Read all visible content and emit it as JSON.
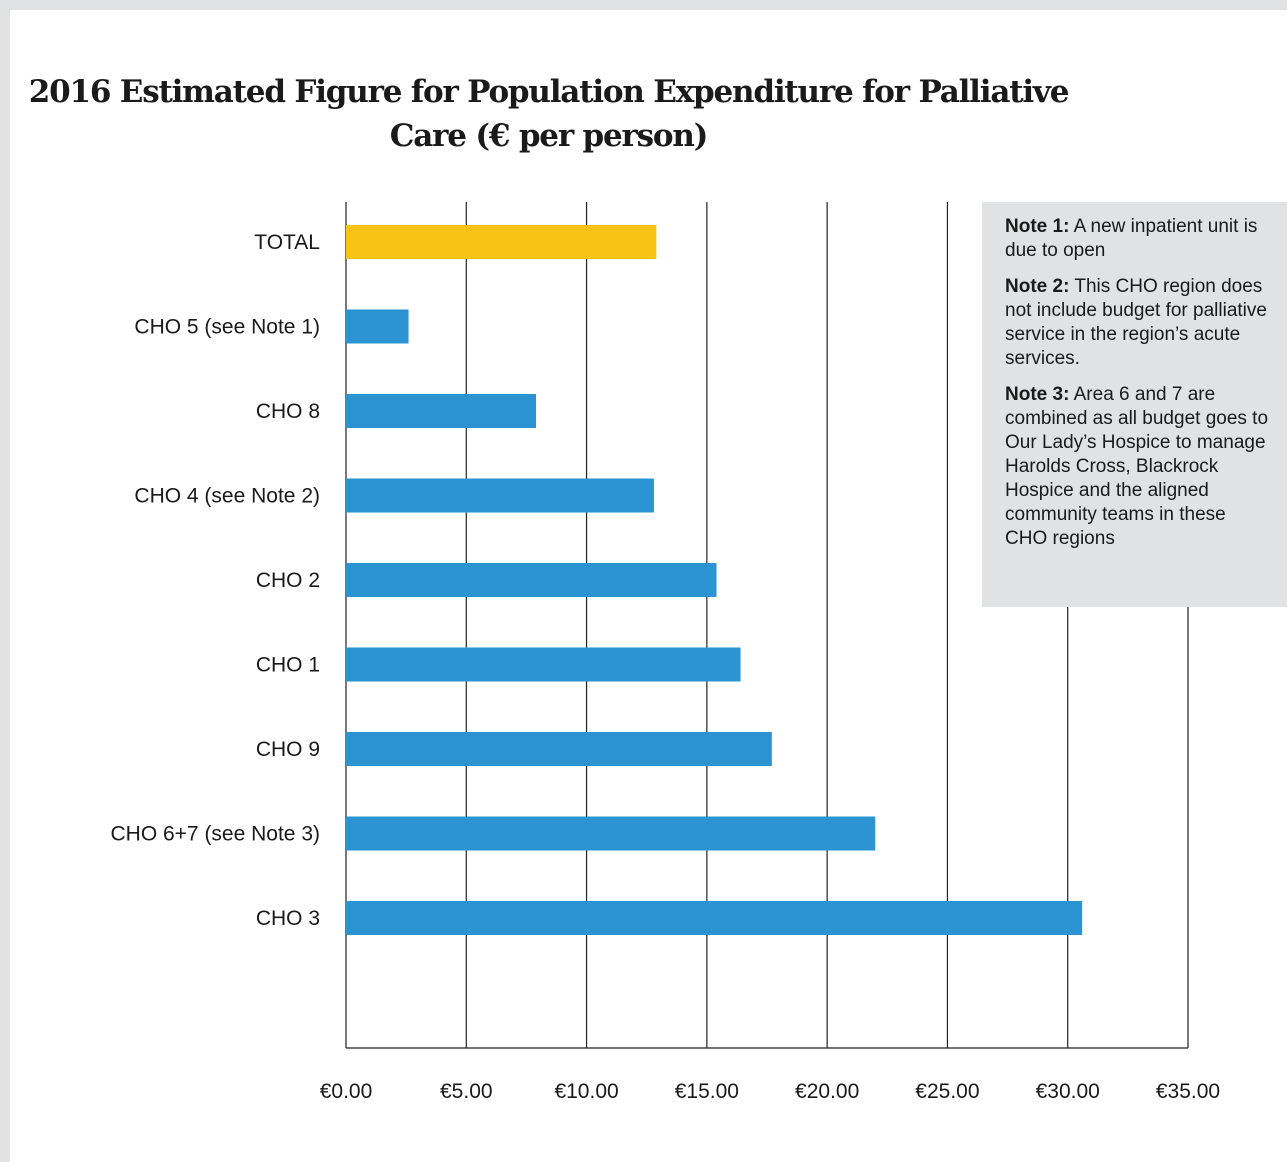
{
  "chart_data": {
    "type": "bar",
    "orientation": "horizontal",
    "title": "2016 Estimated Figure for Population Expenditure for Palliative Care (€ per person)",
    "categories": [
      "TOTAL",
      "CHO 5 (see Note 1)",
      "CHO 8",
      "CHO 4 (see Note 2)",
      "CHO 2",
      "CHO 1",
      "CHO 9",
      "CHO 6+7 (see Note 3)",
      "CHO 3"
    ],
    "values": [
      12.9,
      2.6,
      7.9,
      12.8,
      15.4,
      16.4,
      17.7,
      22.0,
      30.6
    ],
    "colors": [
      "#f9c315",
      "#2b93d1",
      "#2b93d1",
      "#2b93d1",
      "#2b93d1",
      "#2b93d1",
      "#2b93d1",
      "#2b93d1",
      "#2b93d1"
    ],
    "xlim": [
      0,
      35
    ],
    "xticks": [
      0,
      5,
      10,
      15,
      20,
      25,
      30,
      35
    ],
    "xtick_labels": [
      "€0.00",
      "€5.00",
      "€10.00",
      "€15.00",
      "€20.00",
      "€25.00",
      "€30.00",
      "€35.00"
    ],
    "grid": "vertical",
    "xlabel": "",
    "ylabel": ""
  },
  "notes": [
    {
      "label": "Note 1:",
      "text": " A new inpatient unit is due to open"
    },
    {
      "label": "Note 2:",
      "text": " This CHO region does not include budget for palliative service in the region’s acute services."
    },
    {
      "label": "Note 3:",
      "text": " Area 6 and 7 are combined as all budget goes to Our Lady’s Hospice to manage Harolds Cross, Blackrock Hospice and the aligned community teams in these CHO regions"
    }
  ]
}
